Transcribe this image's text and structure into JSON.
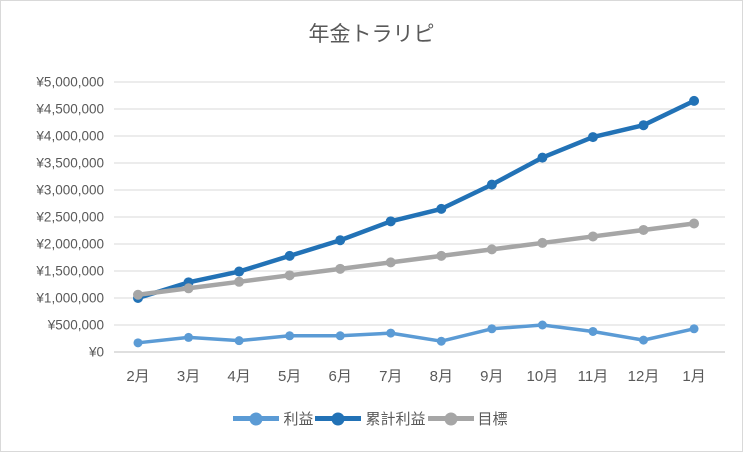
{
  "chart_data": {
    "type": "line",
    "title": "年金トラリピ",
    "categories": [
      "2月",
      "3月",
      "4月",
      "5月",
      "6月",
      "7月",
      "8月",
      "9月",
      "10月",
      "11月",
      "12月",
      "1月"
    ],
    "series": [
      {
        "name": "利益",
        "color": "#5B9BD5",
        "values": [
          170000,
          270000,
          210000,
          300000,
          300000,
          350000,
          200000,
          430000,
          500000,
          380000,
          220000,
          430000
        ]
      },
      {
        "name": "累計利益",
        "color": "#2272B6",
        "values": [
          1000000,
          1290000,
          1490000,
          1780000,
          2070000,
          2420000,
          2650000,
          3100000,
          3600000,
          3980000,
          4200000,
          4650000
        ]
      },
      {
        "name": "目標",
        "color": "#A6A6A6",
        "values": [
          1060000,
          1180000,
          1300000,
          1420000,
          1540000,
          1660000,
          1780000,
          1900000,
          2020000,
          2140000,
          2260000,
          2380000
        ]
      }
    ],
    "y_axis": {
      "min": 0,
      "max": 5000000,
      "step": 500000,
      "tick_labels": [
        "¥0",
        "¥500,000",
        "¥1,000,000",
        "¥1,500,000",
        "¥2,000,000",
        "¥2,500,000",
        "¥3,000,000",
        "¥3,500,000",
        "¥4,000,000",
        "¥4,500,000",
        "¥5,000,000"
      ]
    },
    "legend_position": "bottom",
    "grid": true,
    "colors": {
      "grid": "#D9D9D9",
      "axis": "#BFBFBF",
      "text": "#595959",
      "frame_border": "#D9D9D9",
      "background": "#FFFFFF"
    }
  }
}
